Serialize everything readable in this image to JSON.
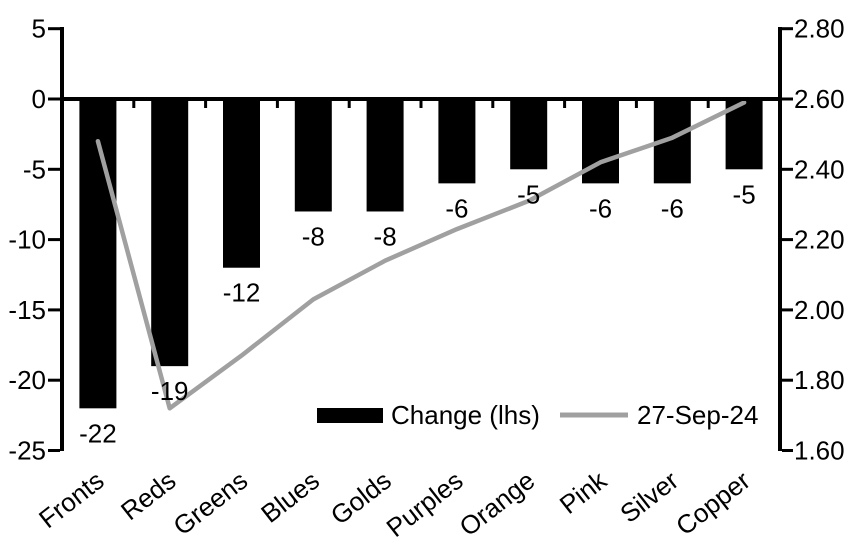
{
  "chart_data": {
    "type": "bar+line combo",
    "title": "",
    "categories": [
      "Fronts",
      "Reds",
      "Greens",
      "Blues",
      "Golds",
      "Purples",
      "Orange",
      "Pink",
      "Silver",
      "Copper"
    ],
    "series": [
      {
        "name": "Change (lhs)",
        "type": "bar",
        "axis": "left",
        "color": "#000000",
        "values": [
          -22,
          -19,
          -12,
          -8,
          -8,
          -6,
          -5,
          -6,
          -6,
          -5
        ],
        "data_labels": [
          "-22",
          "-19",
          "-12",
          "-8",
          "-8",
          "-6",
          "-5",
          "-6",
          "-6",
          "-5"
        ]
      },
      {
        "name": "27-Sep-24",
        "type": "line",
        "axis": "right",
        "color": "#a0a0a0",
        "values": [
          2.48,
          1.72,
          1.87,
          2.03,
          2.14,
          2.23,
          2.31,
          2.42,
          2.49,
          2.59
        ]
      }
    ],
    "left_axis": {
      "min": -25,
      "max": 5,
      "tick_step": 5,
      "ticks": [
        "5",
        "0",
        "-5",
        "-10",
        "-15",
        "-20",
        "-25"
      ]
    },
    "right_axis": {
      "min": 1.6,
      "max": 2.8,
      "tick_step": 0.2,
      "ticks": [
        "2.80",
        "2.60",
        "2.40",
        "2.20",
        "2.00",
        "1.80",
        "1.60"
      ]
    },
    "legend": {
      "position": "bottom-center-inside-plot",
      "items": [
        {
          "label": "Change (lhs)",
          "swatch": "bar",
          "color": "#000000"
        },
        {
          "label": "27-Sep-24",
          "swatch": "line",
          "color": "#a0a0a0"
        }
      ]
    },
    "grid": false,
    "notes": "bars hang from zero baseline; gray line crosses in front of bars; category labels rotated ~38deg"
  },
  "colors": {
    "background": "#ffffff",
    "bar": "#000000",
    "line": "#a0a0a0",
    "axis": "#000000",
    "text": "#000000"
  }
}
